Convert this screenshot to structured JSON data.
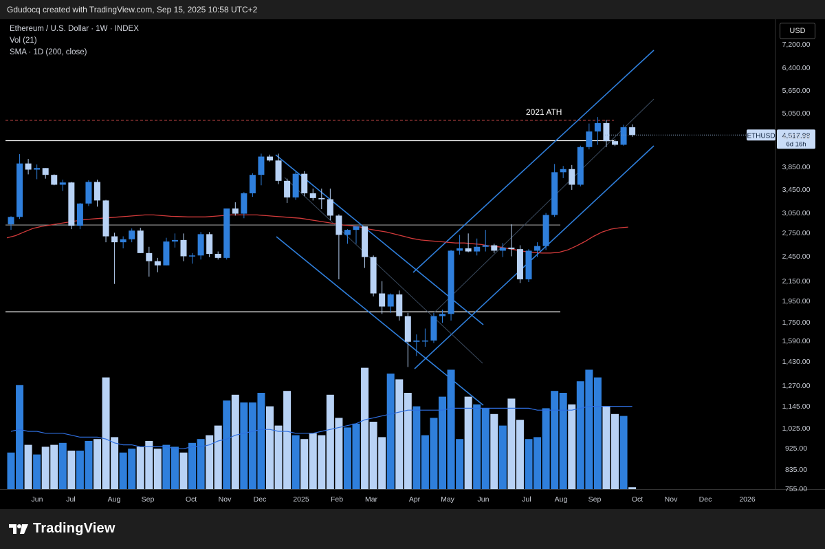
{
  "header": {
    "title": "Gdudocq created with TradingView.com, Sep 15, 2025 10:58 UTC+2"
  },
  "legend": {
    "symbol": "Ethereum / U.S. Dollar · 1W · INDEX",
    "volume": "Vol (21)",
    "sma": "SMA · 1D (200, close)"
  },
  "price_axis": {
    "currency": "USD"
  },
  "brand": {
    "name": "TradingView"
  },
  "chart_data": {
    "type": "candlestick",
    "price_ticks": [
      "7,200.00",
      "6,400.00",
      "5,650.00",
      "5,050.00",
      "4,450.00",
      "3,850.00",
      "3,450.00",
      "3,050.00",
      "2,750.00",
      "2,450.00",
      "2,150.00",
      "1,950.00",
      "1,750.00",
      "1,590.00",
      "1,430.00",
      "1,270.00",
      "1,145.00",
      "1,025.00",
      "925.00",
      "835.00",
      "755.00"
    ],
    "time_ticks": [
      "Jun",
      "Jul",
      "Aug",
      "Sep",
      "Oct",
      "Nov",
      "Dec",
      "2025",
      "Feb",
      "Mar",
      "Apr",
      "May",
      "Jun",
      "Jul",
      "Aug",
      "Sep",
      "Oct",
      "Nov",
      "Dec",
      "2026"
    ],
    "last_price": {
      "symbol": "ETHUSD",
      "value": "4,517.98",
      "countdown": "6d 16h"
    },
    "annotations": [
      {
        "text": "2021 ATH",
        "price": 4870
      }
    ],
    "horizontal_levels": [
      {
        "price": 4870,
        "style": "dashed",
        "color": "#d14b4b"
      },
      {
        "price": 4390,
        "style": "solid",
        "color": "#ffffff"
      },
      {
        "price": 2860,
        "style": "solid",
        "color": "#9a9a9a"
      },
      {
        "price": 1840,
        "style": "solid",
        "color": "#ffffff"
      }
    ],
    "colors": {
      "up": "#2f7fdc",
      "down": "#b8d2f5",
      "sma": "#d23a3a",
      "vol_ma": "#2f6fe0",
      "channel": "#2f7fdc",
      "background": "#000000"
    },
    "candles": [
      {
        "o": 2870,
        "h": 2990,
        "l": 2790,
        "c": 2980
      },
      {
        "o": 2980,
        "h": 4100,
        "l": 2950,
        "c": 3910
      },
      {
        "o": 3910,
        "h": 4000,
        "l": 3700,
        "c": 3790
      },
      {
        "o": 3790,
        "h": 3890,
        "l": 3610,
        "c": 3820
      },
      {
        "o": 3820,
        "h": 3820,
        "l": 3620,
        "c": 3690
      },
      {
        "o": 3690,
        "h": 3700,
        "l": 3500,
        "c": 3510
      },
      {
        "o": 3510,
        "h": 3600,
        "l": 3400,
        "c": 3550
      },
      {
        "o": 3550,
        "h": 3560,
        "l": 2800,
        "c": 2850
      },
      {
        "o": 2850,
        "h": 3200,
        "l": 2800,
        "c": 3190
      },
      {
        "o": 3190,
        "h": 3590,
        "l": 3150,
        "c": 3560
      },
      {
        "o": 3560,
        "h": 3600,
        "l": 3140,
        "c": 3240
      },
      {
        "o": 3240,
        "h": 3250,
        "l": 2620,
        "c": 2700
      },
      {
        "o": 2700,
        "h": 2750,
        "l": 2120,
        "c": 2620
      },
      {
        "o": 2620,
        "h": 2700,
        "l": 2540,
        "c": 2660
      },
      {
        "o": 2660,
        "h": 2810,
        "l": 2620,
        "c": 2780
      },
      {
        "o": 2780,
        "h": 2820,
        "l": 2480,
        "c": 2480
      },
      {
        "o": 2480,
        "h": 2560,
        "l": 2200,
        "c": 2380
      },
      {
        "o": 2380,
        "h": 2420,
        "l": 2250,
        "c": 2330
      },
      {
        "o": 2330,
        "h": 2680,
        "l": 2330,
        "c": 2630
      },
      {
        "o": 2630,
        "h": 2740,
        "l": 2550,
        "c": 2650
      },
      {
        "o": 2650,
        "h": 2740,
        "l": 2380,
        "c": 2440
      },
      {
        "o": 2440,
        "h": 2480,
        "l": 2350,
        "c": 2450
      },
      {
        "o": 2450,
        "h": 2760,
        "l": 2400,
        "c": 2730
      },
      {
        "o": 2730,
        "h": 2760,
        "l": 2430,
        "c": 2470
      },
      {
        "o": 2470,
        "h": 2500,
        "l": 2400,
        "c": 2420
      },
      {
        "o": 2420,
        "h": 3100,
        "l": 2400,
        "c": 3110
      },
      {
        "o": 3110,
        "h": 3210,
        "l": 3000,
        "c": 3030
      },
      {
        "o": 3030,
        "h": 3380,
        "l": 2960,
        "c": 3360
      },
      {
        "o": 3360,
        "h": 3720,
        "l": 3300,
        "c": 3690
      },
      {
        "o": 3690,
        "h": 4110,
        "l": 3500,
        "c": 4050
      },
      {
        "o": 4050,
        "h": 4090,
        "l": 3950,
        "c": 3970
      },
      {
        "o": 3970,
        "h": 4110,
        "l": 3520,
        "c": 3580
      },
      {
        "o": 3580,
        "h": 3620,
        "l": 3200,
        "c": 3290
      },
      {
        "o": 3290,
        "h": 3760,
        "l": 3250,
        "c": 3710
      },
      {
        "o": 3710,
        "h": 3760,
        "l": 3310,
        "c": 3360
      },
      {
        "o": 3360,
        "h": 3440,
        "l": 3240,
        "c": 3280
      },
      {
        "o": 3280,
        "h": 3440,
        "l": 3100,
        "c": 3260
      },
      {
        "o": 3260,
        "h": 3440,
        "l": 2930,
        "c": 3000
      },
      {
        "o": 3000,
        "h": 3020,
        "l": 2170,
        "c": 2720
      },
      {
        "o": 2720,
        "h": 2800,
        "l": 2600,
        "c": 2790
      },
      {
        "o": 2790,
        "h": 2820,
        "l": 2600,
        "c": 2840
      },
      {
        "o": 2840,
        "h": 2840,
        "l": 2300,
        "c": 2430
      },
      {
        "o": 2430,
        "h": 2450,
        "l": 1990,
        "c": 2020
      },
      {
        "o": 2020,
        "h": 2150,
        "l": 1820,
        "c": 1890
      },
      {
        "o": 1890,
        "h": 2020,
        "l": 1830,
        "c": 2010
      },
      {
        "o": 2010,
        "h": 2050,
        "l": 1760,
        "c": 1800
      },
      {
        "o": 1800,
        "h": 1830,
        "l": 1390,
        "c": 1580
      },
      {
        "o": 1580,
        "h": 1640,
        "l": 1470,
        "c": 1590
      },
      {
        "o": 1590,
        "h": 1690,
        "l": 1540,
        "c": 1590
      },
      {
        "o": 1590,
        "h": 1830,
        "l": 1570,
        "c": 1800
      },
      {
        "o": 1800,
        "h": 1860,
        "l": 1740,
        "c": 1820
      },
      {
        "o": 1820,
        "h": 2520,
        "l": 1760,
        "c": 2510
      },
      {
        "o": 2510,
        "h": 2720,
        "l": 2460,
        "c": 2540
      },
      {
        "o": 2540,
        "h": 2740,
        "l": 2490,
        "c": 2500
      },
      {
        "o": 2500,
        "h": 2670,
        "l": 2450,
        "c": 2560
      },
      {
        "o": 2560,
        "h": 2790,
        "l": 2500,
        "c": 2580
      },
      {
        "o": 2580,
        "h": 2600,
        "l": 2480,
        "c": 2510
      },
      {
        "o": 2510,
        "h": 2610,
        "l": 2430,
        "c": 2550
      },
      {
        "o": 2550,
        "h": 2870,
        "l": 2440,
        "c": 2530
      },
      {
        "o": 2530,
        "h": 2580,
        "l": 2130,
        "c": 2170
      },
      {
        "o": 2170,
        "h": 2530,
        "l": 2140,
        "c": 2510
      },
      {
        "o": 2510,
        "h": 2620,
        "l": 2430,
        "c": 2570
      },
      {
        "o": 2570,
        "h": 3040,
        "l": 2520,
        "c": 3010
      },
      {
        "o": 3010,
        "h": 3900,
        "l": 2980,
        "c": 3740
      },
      {
        "o": 3740,
        "h": 3860,
        "l": 3630,
        "c": 3800
      },
      {
        "o": 3800,
        "h": 3880,
        "l": 3420,
        "c": 3510
      },
      {
        "o": 3510,
        "h": 4280,
        "l": 3480,
        "c": 4250
      },
      {
        "o": 4250,
        "h": 4790,
        "l": 4200,
        "c": 4600
      },
      {
        "o": 4600,
        "h": 4950,
        "l": 4300,
        "c": 4800
      },
      {
        "o": 4800,
        "h": 4880,
        "l": 4250,
        "c": 4380
      },
      {
        "o": 4380,
        "h": 4420,
        "l": 4270,
        "c": 4300
      },
      {
        "o": 4300,
        "h": 4760,
        "l": 4280,
        "c": 4700
      },
      {
        "o": 4700,
        "h": 4770,
        "l": 4480,
        "c": 4518
      }
    ],
    "volume": [
      1.9,
      5.4,
      2.3,
      1.8,
      2.2,
      2.3,
      2.4,
      2.0,
      2.0,
      2.5,
      2.6,
      5.8,
      2.7,
      1.9,
      2.1,
      2.2,
      2.5,
      2.1,
      2.3,
      2.2,
      1.9,
      2.4,
      2.6,
      2.8,
      3.3,
      4.6,
      4.9,
      4.5,
      4.5,
      5.0,
      4.3,
      3.3,
      5.1,
      2.8,
      2.6,
      2.9,
      2.8,
      4.9,
      3.7,
      3.2,
      3.4,
      6.3,
      3.5,
      2.7,
      6.0,
      5.7,
      5.0,
      4.3,
      2.8,
      3.7,
      4.8,
      6.2,
      2.6,
      4.8,
      4.4,
      4.2,
      3.9,
      3.3,
      4.7,
      3.6,
      2.6,
      2.7,
      4.2,
      5.1,
      5.0,
      4.4,
      5.6,
      6.2,
      5.8,
      4.3,
      3.9,
      3.8,
      0.1
    ],
    "sma_200": [
      2680,
      2710,
      2760,
      2810,
      2840,
      2860,
      2880,
      2900,
      2920,
      2940,
      2950,
      2960,
      2970,
      2980,
      2990,
      3000,
      3010,
      3010,
      3000,
      2990,
      2985,
      2980,
      2980,
      2980,
      2990,
      3000,
      3010,
      3010,
      3010,
      3010,
      3000,
      2990,
      2980,
      2970,
      2960,
      2940,
      2920,
      2900,
      2880,
      2860,
      2850,
      2830,
      2800,
      2780,
      2760,
      2730,
      2700,
      2670,
      2650,
      2640,
      2630,
      2620,
      2610,
      2610,
      2600,
      2590,
      2570,
      2560,
      2540,
      2520,
      2500,
      2490,
      2480,
      2480,
      2490,
      2520,
      2570,
      2630,
      2700,
      2760,
      2800,
      2820,
      2830
    ],
    "vol_ma": [
      3.0,
      3.1,
      3.0,
      3.0,
      2.9,
      2.9,
      2.9,
      2.8,
      2.7,
      2.7,
      2.7,
      2.6,
      2.4,
      2.3,
      2.3,
      2.2,
      2.2,
      2.2,
      2.2,
      2.1,
      2.1,
      2.2,
      2.2,
      2.3,
      2.5,
      2.6,
      2.8,
      2.9,
      3.0,
      3.1,
      3.1,
      3.0,
      3.0,
      2.9,
      2.9,
      2.9,
      3.0,
      3.1,
      3.2,
      3.3,
      3.4,
      3.6,
      3.7,
      3.8,
      3.9,
      4.0,
      4.1,
      4.1,
      4.1,
      4.1,
      4.1,
      4.2,
      4.2,
      4.2,
      4.2,
      4.2,
      4.2,
      4.2,
      4.2,
      4.2,
      4.2,
      4.1,
      4.1,
      4.1,
      4.1,
      4.1,
      4.2,
      4.3,
      4.3,
      4.3,
      4.3,
      4.3,
      4.3
    ]
  }
}
